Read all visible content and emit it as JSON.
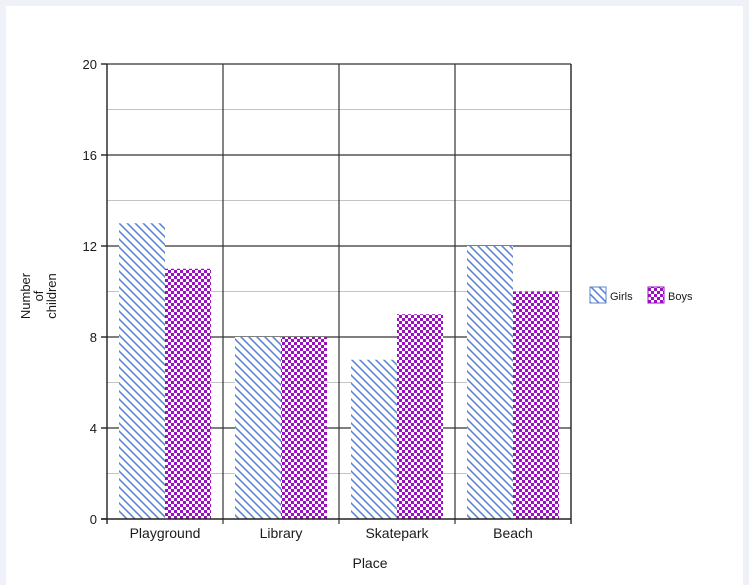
{
  "chart_data": {
    "type": "bar",
    "categories": [
      "Playground",
      "Library",
      "Skatepark",
      "Beach"
    ],
    "series": [
      {
        "name": "Girls",
        "values": [
          13,
          8,
          7,
          12
        ],
        "color": "#5b86d6",
        "pattern": "diagonal-hatch"
      },
      {
        "name": "Boys",
        "values": [
          11,
          8,
          9,
          10
        ],
        "color": "#9a0fbf",
        "pattern": "checkerboard"
      }
    ],
    "xlabel": "Place",
    "ylabel_lines": [
      "Number",
      "of",
      "children"
    ],
    "ylim": [
      0,
      20
    ],
    "yticks": [
      0,
      4,
      8,
      12,
      16,
      20
    ],
    "minor_gridlines": [
      2,
      6,
      10,
      14,
      18
    ],
    "grid": true,
    "legend_position": "right"
  }
}
